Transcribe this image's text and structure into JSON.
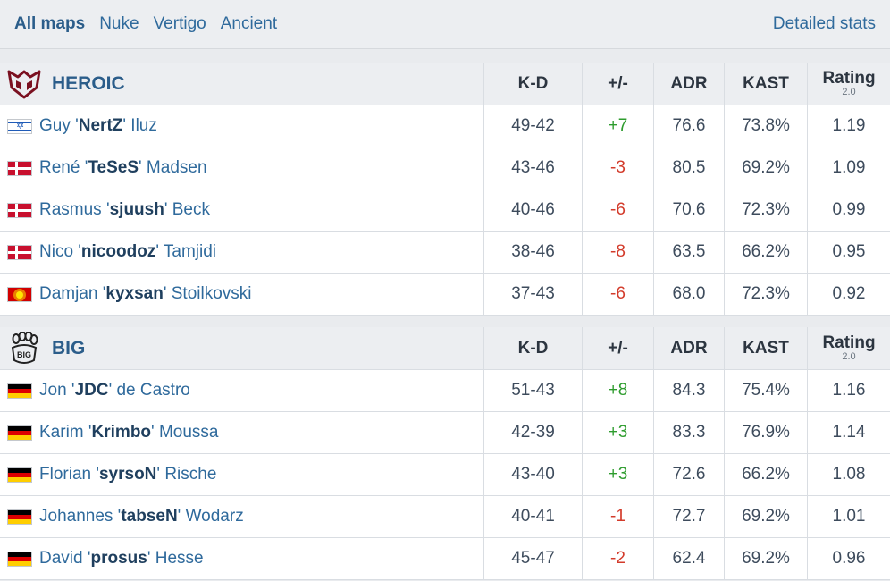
{
  "map_tabs": [
    "All maps",
    "Nuke",
    "Vertigo",
    "Ancient"
  ],
  "detailed_stats_label": "Detailed stats",
  "headers": {
    "kd": "K-D",
    "pm": "+/-",
    "adr": "ADR",
    "kast": "KAST",
    "rating": "Rating",
    "rating_sub": "2.0"
  },
  "teams": [
    {
      "name": "HEROIC",
      "players": [
        {
          "first": "Guy",
          "nick": "NertZ",
          "last": "Iluz",
          "flag": "il",
          "kd": "49-42",
          "pm": "+7",
          "adr": "76.6",
          "kast": "73.8%",
          "rating": "1.19"
        },
        {
          "first": "René",
          "nick": "TeSeS",
          "last": "Madsen",
          "flag": "dk",
          "kd": "43-46",
          "pm": "-3",
          "adr": "80.5",
          "kast": "69.2%",
          "rating": "1.09"
        },
        {
          "first": "Rasmus",
          "nick": "sjuush",
          "last": "Beck",
          "flag": "dk",
          "kd": "40-46",
          "pm": "-6",
          "adr": "70.6",
          "kast": "72.3%",
          "rating": "0.99"
        },
        {
          "first": "Nico",
          "nick": "nicoodoz",
          "last": "Tamjidi",
          "flag": "dk",
          "kd": "38-46",
          "pm": "-8",
          "adr": "63.5",
          "kast": "66.2%",
          "rating": "0.95"
        },
        {
          "first": "Damjan",
          "nick": "kyxsan",
          "last": "Stoilkovski",
          "flag": "mk",
          "kd": "37-43",
          "pm": "-6",
          "adr": "68.0",
          "kast": "72.3%",
          "rating": "0.92"
        }
      ]
    },
    {
      "name": "BIG",
      "players": [
        {
          "first": "Jon",
          "nick": "JDC",
          "last": "de Castro",
          "flag": "de",
          "kd": "51-43",
          "pm": "+8",
          "adr": "84.3",
          "kast": "75.4%",
          "rating": "1.16"
        },
        {
          "first": "Karim",
          "nick": "Krimbo",
          "last": "Moussa",
          "flag": "de",
          "kd": "42-39",
          "pm": "+3",
          "adr": "83.3",
          "kast": "76.9%",
          "rating": "1.14"
        },
        {
          "first": "Florian",
          "nick": "syrsoN",
          "last": "Rische",
          "flag": "de",
          "kd": "43-40",
          "pm": "+3",
          "adr": "72.6",
          "kast": "66.2%",
          "rating": "1.08"
        },
        {
          "first": "Johannes",
          "nick": "tabseN",
          "last": "Wodarz",
          "flag": "de",
          "kd": "40-41",
          "pm": "-1",
          "adr": "72.7",
          "kast": "69.2%",
          "rating": "1.01"
        },
        {
          "first": "David",
          "nick": "prosus",
          "last": "Hesse",
          "flag": "de",
          "kd": "45-47",
          "pm": "-2",
          "adr": "62.4",
          "kast": "69.2%",
          "rating": "0.96"
        }
      ]
    }
  ],
  "colors": {
    "link": "#2f6a9c",
    "positive": "#2e9c2e",
    "negative": "#d33b2b",
    "header_bg": "#eceef1"
  }
}
